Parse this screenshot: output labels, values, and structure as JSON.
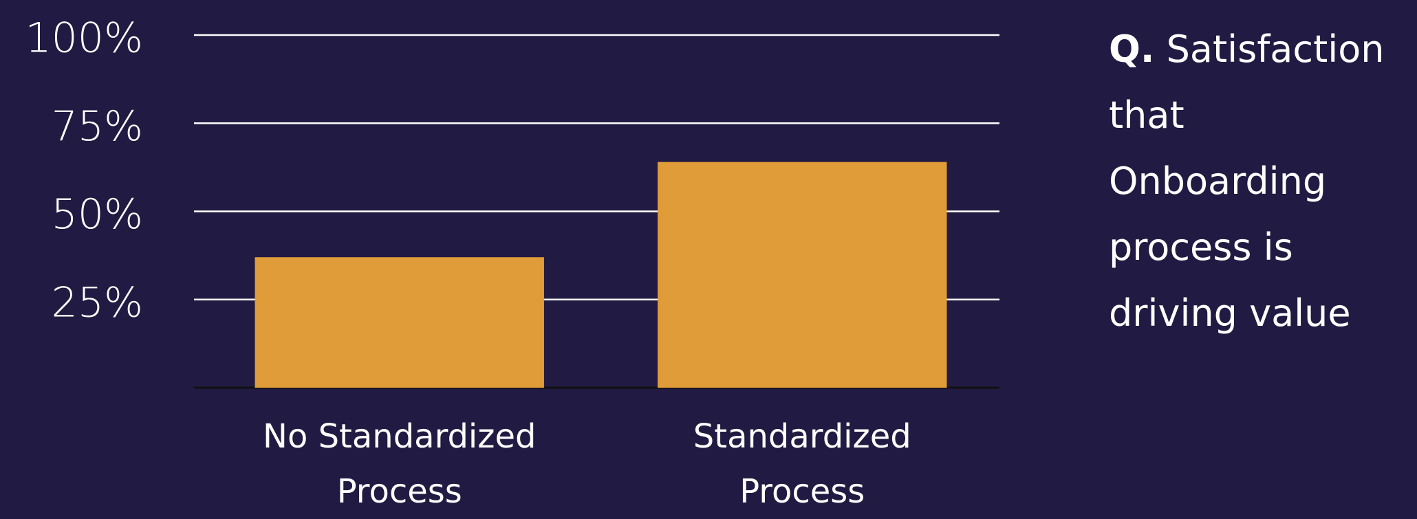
{
  "chart_data": {
    "type": "bar",
    "question_label": "Q.",
    "title": "Satisfaction that Onboarding process is driving value",
    "categories": [
      "No Standardized Process",
      "Standardized Process"
    ],
    "values": [
      37,
      64
    ],
    "color": "#e09c38",
    "ylim": [
      0,
      100
    ],
    "yticks": [
      {
        "value": 25,
        "label": "25%"
      },
      {
        "value": 50,
        "label": "50%"
      },
      {
        "value": 75,
        "label": "75%"
      },
      {
        "value": 100,
        "label": "100%"
      }
    ],
    "grid": true
  }
}
